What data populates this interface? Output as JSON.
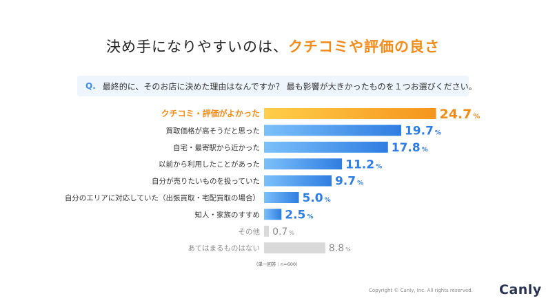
{
  "title": {
    "pre": "決め手になりやすいのは、",
    "highlight": "クチコミや評価の良さ"
  },
  "question": {
    "mark": "Q.",
    "text": "最終的に、そのお店に決めた理由はなんですか？ 最も影響が大きかったものを１つお選びください。"
  },
  "chart_data": {
    "type": "bar",
    "orientation": "horizontal",
    "unit": "%",
    "categories": [
      "クチコミ・評価がよかった",
      "買取価格が高そうだと思った",
      "自宅・最寄駅から近かった",
      "以前から利用したことがあった",
      "自分が売りたいものを扱っていた",
      "自分のエリアに対応していた（出張買取・宅配買取の場合）",
      "知人・家族のすすめ",
      "その他",
      "あてはまるものはない"
    ],
    "values": [
      24.7,
      19.7,
      17.8,
      11.2,
      9.7,
      5.0,
      2.5,
      0.7,
      8.8
    ],
    "value_labels": [
      "24.7",
      "19.7",
      "17.8",
      "11.2",
      "9.7",
      "5.0",
      "2.5",
      "0.7",
      "8.8"
    ],
    "highlight_index": 0,
    "muted_indices": [
      7,
      8
    ],
    "colors": {
      "highlight_start": "#ffce4a",
      "highlight_end": "#f5951e",
      "highlight_label": "#f08c1a",
      "bar_start": "#7cc0fa",
      "bar_end": "#2f7de1",
      "bar_label": "#2f7de1",
      "muted_bar": "#d9d9d9",
      "muted_label": "#8c8c8c",
      "category_text": "#333333",
      "muted_text": "#8c8c8c"
    }
  },
  "note": "（単一回答｜n=600）",
  "copyright": "Copyright © Canly, Inc. All rights reserved.",
  "logo": "Canly"
}
